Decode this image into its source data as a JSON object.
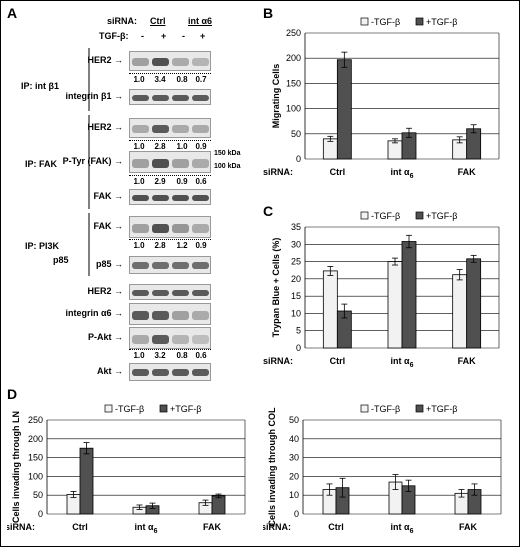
{
  "figure": {
    "panel_letters": [
      "A",
      "B",
      "C",
      "D"
    ],
    "siRNA_label": "siRNA:",
    "tgf_label": "TGF-β:",
    "tgf_symbols": [
      "-",
      "+",
      "-",
      "+"
    ],
    "blot_groups": [
      "Ctrl",
      "int α6"
    ],
    "ip_labels": [
      "IP: int β1",
      "IP: FAK",
      "IP: PI3K",
      "p85"
    ],
    "blot_rows": [
      {
        "label": "HER2",
        "quant": [
          "1.0",
          "3.4",
          "0.8",
          "0.7"
        ]
      },
      {
        "label": "integrin β1",
        "quant": []
      },
      {
        "label": "HER2",
        "quant": [
          "1.0",
          "2.8",
          "1.0",
          "0.9"
        ]
      },
      {
        "label": "P-Tyr (FAK)",
        "quant": [
          "1.0",
          "2.9",
          "0.9",
          "0.6"
        ]
      },
      {
        "label": "FAK",
        "quant": []
      },
      {
        "label": "FAK",
        "quant": [
          "1.0",
          "2.8",
          "1.2",
          "0.9"
        ]
      },
      {
        "label": "p85",
        "quant": []
      },
      {
        "label": "HER2",
        "quant": []
      },
      {
        "label": "integrin α6",
        "quant": []
      },
      {
        "label": "P-Akt",
        "quant": [
          "1.0",
          "3.2",
          "0.8",
          "0.6"
        ]
      },
      {
        "label": "Akt",
        "quant": []
      }
    ],
    "markers": [
      "150 kDa",
      "100 kDa"
    ]
  },
  "chart_data": [
    {
      "id": "B",
      "type": "bar",
      "categories": [
        "Ctrl",
        "int α6",
        "FAK"
      ],
      "series": [
        {
          "name": "-TGF-β",
          "values": [
            40,
            36,
            38
          ],
          "errors": [
            5,
            4,
            6
          ],
          "color": "#f2f2f2"
        },
        {
          "name": "+TGF-β",
          "values": [
            197,
            52,
            60
          ],
          "errors": [
            15,
            9,
            8
          ],
          "color": "#505050"
        }
      ],
      "ylabel": "Migrating Cells",
      "xlabel": "siRNA:",
      "ylim": [
        0,
        250
      ],
      "yticks": [
        0,
        50,
        100,
        150,
        200,
        250
      ],
      "grid": true,
      "legend": "top"
    },
    {
      "id": "C",
      "type": "bar",
      "categories": [
        "Ctrl",
        "int α6",
        "FAK"
      ],
      "series": [
        {
          "name": "-TGF-β",
          "values": [
            22.3,
            25,
            21.2
          ],
          "errors": [
            1.3,
            1,
            1.5
          ],
          "color": "#f2f2f2"
        },
        {
          "name": "+TGF-β",
          "values": [
            10.7,
            30.8,
            25.8
          ],
          "errors": [
            2,
            1.8,
            1
          ],
          "color": "#505050"
        }
      ],
      "ylabel": "Trypan Blue + Cells (%)",
      "xlabel": "siRNA:",
      "ylim": [
        0,
        35
      ],
      "yticks": [
        0,
        5,
        10,
        15,
        20,
        25,
        30,
        35
      ],
      "grid": true,
      "legend": "top"
    },
    {
      "id": "D1",
      "type": "bar",
      "categories": [
        "Ctrl",
        "int α6",
        "FAK"
      ],
      "series": [
        {
          "name": "-TGF-β",
          "values": [
            52,
            18,
            30
          ],
          "errors": [
            8,
            6,
            7
          ],
          "color": "#f2f2f2"
        },
        {
          "name": "+TGF-β",
          "values": [
            175,
            22,
            48
          ],
          "errors": [
            15,
            7,
            5
          ],
          "color": "#505050"
        }
      ],
      "ylabel": "Cells invading through LN",
      "xlabel": "siRNA:",
      "ylim": [
        0,
        250
      ],
      "yticks": [
        0,
        50,
        100,
        150,
        200,
        250
      ],
      "grid": true,
      "legend": "top"
    },
    {
      "id": "D2",
      "type": "bar",
      "categories": [
        "Ctrl",
        "int α6",
        "FAK"
      ],
      "series": [
        {
          "name": "-TGF-β",
          "values": [
            13,
            17,
            11
          ],
          "errors": [
            3,
            4,
            2
          ],
          "color": "#f2f2f2"
        },
        {
          "name": "+TGF-β",
          "values": [
            14,
            15,
            13
          ],
          "errors": [
            5,
            3,
            3
          ],
          "color": "#505050"
        }
      ],
      "ylabel": "Cells invading through COL",
      "xlabel": "siRNA:",
      "ylim": [
        0,
        50
      ],
      "yticks": [
        0,
        10,
        20,
        30,
        40,
        50
      ],
      "grid": true,
      "legend": "top"
    }
  ]
}
